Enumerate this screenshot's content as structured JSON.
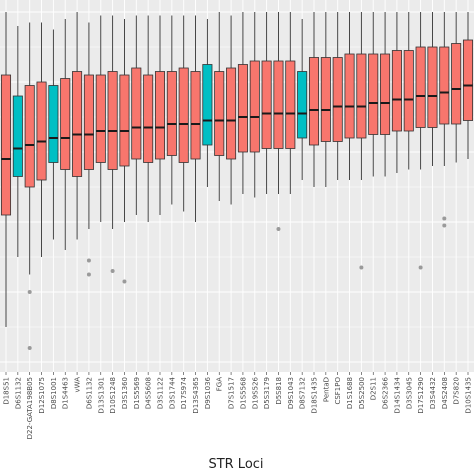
{
  "chart_data": {
    "type": "boxplot",
    "xlabel": "STR Loci",
    "ylabel": "",
    "title": "",
    "colors": {
      "default": "#F8766D",
      "highlight": "#00BFC4",
      "panel": "#EBEBEB",
      "grid": "#FFFFFF",
      "median": "#1a1a1a"
    },
    "ylim": [
      0,
      100
    ],
    "categories": [
      {
        "name": "D18S51",
        "group": "default",
        "q1": 42,
        "median": 58,
        "q3": 82,
        "wlo": 10,
        "whi": 100,
        "outliers": []
      },
      {
        "name": "D6S1132",
        "group": "highlight",
        "q1": 53,
        "median": 61,
        "q3": 76,
        "wlo": 30,
        "whi": 96,
        "outliers": []
      },
      {
        "name": "D22-GATA198B05",
        "group": "default",
        "q1": 50,
        "median": 62,
        "q3": 79,
        "wlo": 25,
        "whi": 97,
        "outliers": [
          20,
          4
        ]
      },
      {
        "name": "D12S1075",
        "group": "default",
        "q1": 52,
        "median": 63,
        "q3": 80,
        "wlo": 30,
        "whi": 97,
        "outliers": []
      },
      {
        "name": "D8S1001",
        "group": "highlight",
        "q1": 57,
        "median": 64,
        "q3": 79,
        "wlo": 35,
        "whi": 95,
        "outliers": []
      },
      {
        "name": "D1S4463",
        "group": "default",
        "q1": 55,
        "median": 64,
        "q3": 81,
        "wlo": 32,
        "whi": 98,
        "outliers": []
      },
      {
        "name": "vWA",
        "group": "default",
        "q1": 53,
        "median": 65,
        "q3": 83,
        "wlo": 35,
        "whi": 100,
        "outliers": []
      },
      {
        "name": "D6S1132",
        "group": "default",
        "q1": 55,
        "median": 65,
        "q3": 82,
        "wlo": 38,
        "whi": 97,
        "outliers": [
          29,
          25
        ]
      },
      {
        "name": "D13S1301",
        "group": "default",
        "q1": 57,
        "median": 66,
        "q3": 82,
        "wlo": 40,
        "whi": 99,
        "outliers": []
      },
      {
        "name": "D10S1248",
        "group": "default",
        "q1": 55,
        "median": 66,
        "q3": 83,
        "wlo": 38,
        "whi": 99,
        "outliers": [
          26
        ]
      },
      {
        "name": "D3S1360",
        "group": "default",
        "q1": 56,
        "median": 66,
        "q3": 82,
        "wlo": 40,
        "whi": 98,
        "outliers": [
          23
        ]
      },
      {
        "name": "D1S5569",
        "group": "default",
        "q1": 58,
        "median": 67,
        "q3": 84,
        "wlo": 42,
        "whi": 99,
        "outliers": []
      },
      {
        "name": "D4S5608",
        "group": "default",
        "q1": 57,
        "median": 67,
        "q3": 82,
        "wlo": 40,
        "whi": 99,
        "outliers": []
      },
      {
        "name": "D3S1122",
        "group": "default",
        "q1": 58,
        "median": 67,
        "q3": 83,
        "wlo": 42,
        "whi": 99,
        "outliers": []
      },
      {
        "name": "D3S1744",
        "group": "default",
        "q1": 59,
        "median": 68,
        "q3": 83,
        "wlo": 45,
        "whi": 99,
        "outliers": []
      },
      {
        "name": "D17S974",
        "group": "default",
        "q1": 57,
        "median": 68,
        "q3": 84,
        "wlo": 43,
        "whi": 99,
        "outliers": []
      },
      {
        "name": "D13S4365",
        "group": "default",
        "q1": 58,
        "median": 68,
        "q3": 83,
        "wlo": 40,
        "whi": 99,
        "outliers": []
      },
      {
        "name": "D9S1036",
        "group": "highlight",
        "q1": 62,
        "median": 69,
        "q3": 85,
        "wlo": 50,
        "whi": 98,
        "outliers": []
      },
      {
        "name": "FGA",
        "group": "default",
        "q1": 59,
        "median": 69,
        "q3": 83,
        "wlo": 46,
        "whi": 100,
        "outliers": []
      },
      {
        "name": "D7S1517",
        "group": "default",
        "q1": 58,
        "median": 69,
        "q3": 84,
        "wlo": 45,
        "whi": 99,
        "outliers": []
      },
      {
        "name": "D1S5568",
        "group": "default",
        "q1": 60,
        "median": 70,
        "q3": 85,
        "wlo": 48,
        "whi": 100,
        "outliers": []
      },
      {
        "name": "D19S526",
        "group": "default",
        "q1": 60,
        "median": 70,
        "q3": 86,
        "wlo": 47,
        "whi": 100,
        "outliers": []
      },
      {
        "name": "D5S3179",
        "group": "default",
        "q1": 61,
        "median": 71,
        "q3": 86,
        "wlo": 48,
        "whi": 100,
        "outliers": []
      },
      {
        "name": "D5S818",
        "group": "default",
        "q1": 61,
        "median": 71,
        "q3": 86,
        "wlo": 48,
        "whi": 100,
        "outliers": [
          38
        ]
      },
      {
        "name": "D9S1043",
        "group": "default",
        "q1": 61,
        "median": 71,
        "q3": 86,
        "wlo": 48,
        "whi": 100,
        "outliers": []
      },
      {
        "name": "D8S7132",
        "group": "highlight",
        "q1": 64,
        "median": 71,
        "q3": 83,
        "wlo": 52,
        "whi": 98,
        "outliers": []
      },
      {
        "name": "D18S1435",
        "group": "default",
        "q1": 62,
        "median": 72,
        "q3": 87,
        "wlo": 50,
        "whi": 100,
        "outliers": []
      },
      {
        "name": "PentaD",
        "group": "default",
        "q1": 63,
        "median": 72,
        "q3": 87,
        "wlo": 50,
        "whi": 100,
        "outliers": []
      },
      {
        "name": "CSF1PO",
        "group": "default",
        "q1": 63,
        "median": 73,
        "q3": 87,
        "wlo": 52,
        "whi": 100,
        "outliers": []
      },
      {
        "name": "D1S1688",
        "group": "default",
        "q1": 64,
        "median": 73,
        "q3": 88,
        "wlo": 52,
        "whi": 100,
        "outliers": []
      },
      {
        "name": "D5S2500",
        "group": "default",
        "q1": 64,
        "median": 73,
        "q3": 88,
        "wlo": 52,
        "whi": 100,
        "outliers": [
          27
        ]
      },
      {
        "name": "D2S11",
        "group": "default",
        "q1": 65,
        "median": 74,
        "q3": 88,
        "wlo": 53,
        "whi": 100,
        "outliers": []
      },
      {
        "name": "D6S2366",
        "group": "default",
        "q1": 65,
        "median": 74,
        "q3": 88,
        "wlo": 53,
        "whi": 100,
        "outliers": []
      },
      {
        "name": "D14S1434",
        "group": "default",
        "q1": 66,
        "median": 75,
        "q3": 89,
        "wlo": 54,
        "whi": 100,
        "outliers": []
      },
      {
        "name": "D3S3045",
        "group": "default",
        "q1": 66,
        "median": 75,
        "q3": 89,
        "wlo": 55,
        "whi": 100,
        "outliers": []
      },
      {
        "name": "D17S1290",
        "group": "default",
        "q1": 67,
        "median": 76,
        "q3": 90,
        "wlo": 55,
        "whi": 100,
        "outliers": [
          27
        ]
      },
      {
        "name": "D3S4432",
        "group": "default",
        "q1": 67,
        "median": 76,
        "q3": 90,
        "wlo": 56,
        "whi": 100,
        "outliers": []
      },
      {
        "name": "D4S2408",
        "group": "default",
        "q1": 68,
        "median": 77,
        "q3": 90,
        "wlo": 56,
        "whi": 100,
        "outliers": [
          41,
          39
        ]
      },
      {
        "name": "D7S820",
        "group": "default",
        "q1": 68,
        "median": 78,
        "q3": 91,
        "wlo": 57,
        "whi": 100,
        "outliers": []
      },
      {
        "name": "D10S1435",
        "group": "default",
        "q1": 69,
        "median": 79,
        "q3": 92,
        "wlo": 58,
        "whi": 100,
        "outliers": []
      }
    ]
  }
}
